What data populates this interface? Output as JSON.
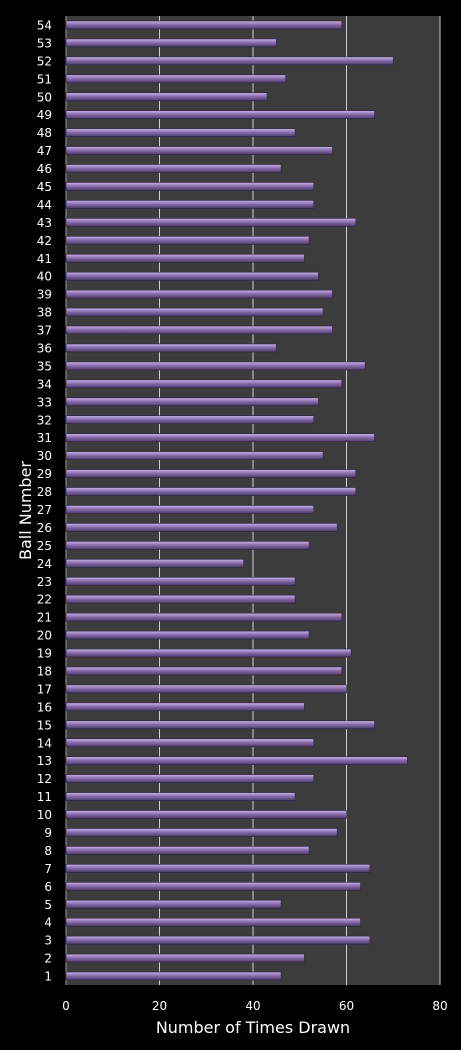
{
  "chart_data": {
    "type": "bar",
    "orientation": "horizontal",
    "title": "",
    "xlabel": "Number of Times Drawn",
    "ylabel": "Ball Number",
    "xlim": [
      0,
      80
    ],
    "xticks": [
      0,
      20,
      40,
      60,
      80
    ],
    "grid": true,
    "legend": "none",
    "colors": {
      "background": "#000000",
      "plot_area": "#3c3c3c",
      "bar_fill": "#8a6fb0",
      "bar_highlight": "#c8b4e6",
      "bar_shadow": "#4a3a66",
      "gridline": "#cfcfcf",
      "text": "#ffffff"
    },
    "categories": [
      "1",
      "2",
      "3",
      "4",
      "5",
      "6",
      "7",
      "8",
      "9",
      "10",
      "11",
      "12",
      "13",
      "14",
      "15",
      "16",
      "17",
      "18",
      "19",
      "20",
      "21",
      "22",
      "23",
      "24",
      "25",
      "26",
      "27",
      "28",
      "29",
      "30",
      "31",
      "32",
      "33",
      "34",
      "35",
      "36",
      "37",
      "38",
      "39",
      "40",
      "41",
      "42",
      "43",
      "44",
      "45",
      "46",
      "47",
      "48",
      "49",
      "50",
      "51",
      "52",
      "53",
      "54"
    ],
    "values": [
      46,
      51,
      65,
      63,
      46,
      63,
      65,
      52,
      58,
      60,
      49,
      53,
      73,
      53,
      66,
      51,
      60,
      59,
      61,
      52,
      59,
      49,
      49,
      38,
      52,
      58,
      53,
      62,
      62,
      55,
      66,
      53,
      54,
      59,
      64,
      45,
      57,
      55,
      57,
      54,
      51,
      52,
      62,
      53,
      53,
      46,
      57,
      49,
      66,
      43,
      47,
      70,
      45,
      59
    ]
  }
}
